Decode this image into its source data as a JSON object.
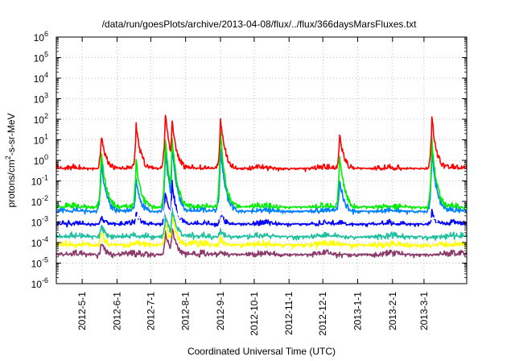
{
  "chart_data": {
    "type": "line",
    "title": "/data/run/goesPlots/archive/2013-04-08/flux/../flux/366daysMarsFluxes.txt",
    "xlabel": "Coordinated Universal Time (UTC)",
    "ylabel": {
      "prefix": "protons/cm",
      "sup": "2",
      "suffix": "-s-sr-MeV"
    },
    "x_scale": "time",
    "y_scale": "log",
    "xlim": [
      "2012-04-08",
      "2013-04-08"
    ],
    "ylim": [
      1e-06,
      1000000.0
    ],
    "grid": true,
    "legend": "none",
    "x_ticks": [
      {
        "date": "2012-05-01",
        "label": "2012-5-1"
      },
      {
        "date": "2012-06-01",
        "label": "2012-6-1"
      },
      {
        "date": "2012-07-01",
        "label": "2012-7-1"
      },
      {
        "date": "2012-08-01",
        "label": "2012-8-1"
      },
      {
        "date": "2012-09-01",
        "label": "2012-9-1"
      },
      {
        "date": "2012-10-01",
        "label": "2012-10-1"
      },
      {
        "date": "2012-11-01",
        "label": "2012-11-1"
      },
      {
        "date": "2012-12-01",
        "label": "2012-12-1"
      },
      {
        "date": "2013-01-01",
        "label": "2013-1-1"
      },
      {
        "date": "2013-02-01",
        "label": "2013-2-1"
      },
      {
        "date": "2013-03-01",
        "label": "2013-3-1"
      }
    ],
    "y_ticks": [
      {
        "exp": -6
      },
      {
        "exp": -5
      },
      {
        "exp": -4
      },
      {
        "exp": -3
      },
      {
        "exp": -2
      },
      {
        "exp": -1
      },
      {
        "exp": 0
      },
      {
        "exp": 1
      },
      {
        "exp": 2
      },
      {
        "exp": 3
      },
      {
        "exp": 4
      },
      {
        "exp": 5
      },
      {
        "exp": 6
      }
    ],
    "series": [
      {
        "color": "#8b3a6b",
        "baseline": 2e-05,
        "x": [
          "2012-04-08",
          "2012-05-18",
          "2012-07-14",
          "2012-07-20",
          "2012-09-01",
          "2013-04-08"
        ],
        "y": [
          2e-05,
          0.0001,
          0.0003,
          0.0005,
          4e-05,
          2e-05
        ]
      },
      {
        "color": "#ffff00",
        "baseline": 6e-05,
        "x": [
          "2012-04-08",
          "2012-05-18",
          "2012-07-14",
          "2012-07-20",
          "2012-09-01",
          "2013-04-08"
        ],
        "y": [
          6e-05,
          0.0003,
          0.001,
          0.002,
          0.00015,
          6e-05
        ]
      },
      {
        "color": "#20c0a0",
        "baseline": 0.00015,
        "x": [
          "2012-04-08",
          "2012-05-18",
          "2012-07-14",
          "2012-07-20",
          "2012-09-01",
          "2013-04-08"
        ],
        "y": [
          0.00015,
          0.0006,
          0.002,
          0.004,
          0.0004,
          0.00015
        ]
      },
      {
        "color": "#0000ff",
        "baseline": 0.0006,
        "x": [
          "2012-04-08",
          "2012-05-18",
          "2012-06-18",
          "2012-07-14",
          "2012-07-20",
          "2012-09-01",
          "2012-12-16",
          "2013-03-08",
          "2013-04-08"
        ],
        "y": [
          0.0006,
          0.002,
          0.003,
          0.03,
          0.08,
          0.003,
          0.001,
          0.003,
          0.0006
        ]
      },
      {
        "color": "#ffffff",
        "baseline": 0.0012,
        "x": [
          "2012-04-08",
          "2012-05-18",
          "2012-07-14",
          "2012-07-20",
          "2012-09-01",
          "2013-04-08"
        ],
        "y": [
          0.0012,
          0.003,
          0.008,
          0.01,
          0.003,
          0.0012
        ]
      },
      {
        "color": "#0080ff",
        "baseline": 0.0025,
        "x": [
          "2012-04-08",
          "2012-05-18",
          "2012-06-18",
          "2012-07-14",
          "2012-07-20",
          "2012-09-01",
          "2012-12-16",
          "2013-03-08",
          "2013-04-08"
        ],
        "y": [
          0.0025,
          1.0,
          0.1,
          3.0,
          5.0,
          5.0,
          0.1,
          3.0,
          0.0025
        ]
      },
      {
        "color": "#00ee00",
        "baseline": 0.004,
        "x": [
          "2012-04-08",
          "2012-05-18",
          "2012-06-18",
          "2012-07-14",
          "2012-07-20",
          "2012-09-01",
          "2012-12-16",
          "2013-03-08",
          "2013-04-08"
        ],
        "y": [
          0.004,
          3.0,
          1.0,
          10.0,
          15.0,
          30.0,
          2.0,
          10.0,
          0.004
        ]
      },
      {
        "color": "#ff0000",
        "baseline": 0.3,
        "x": [
          "2012-04-08",
          "2012-05-18",
          "2012-06-18",
          "2012-07-14",
          "2012-07-20",
          "2012-09-01",
          "2012-12-16",
          "2013-03-08",
          "2013-04-08"
        ],
        "y": [
          0.6,
          15.0,
          50.0,
          200.0,
          80.0,
          120.0,
          15.0,
          120.0,
          0.5
        ]
      }
    ]
  }
}
